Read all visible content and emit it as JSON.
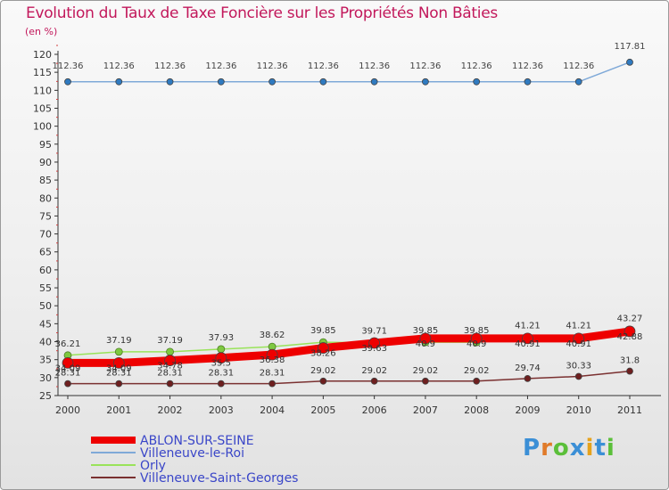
{
  "title": "Evolution du Taux de Taxe Foncière sur les Propriétés Non Bâties",
  "unit": "(en %)",
  "brand": "Proxiti",
  "chart_data": {
    "type": "line",
    "title": "Evolution du Taux de Taxe Foncière sur les Propriétés Non Bâties",
    "ylabel": "(en %)",
    "xlabel": "",
    "ylim": [
      25,
      120
    ],
    "ytick_step": 5,
    "grid": false,
    "legend_position": "bottom-left",
    "categories": [
      "2000",
      "2001",
      "2002",
      "2003",
      "2004",
      "2005",
      "2006",
      "2007",
      "2008",
      "2009",
      "2010",
      "2011"
    ],
    "series": [
      {
        "name": "ABLON-SUR-SEINE",
        "color": "#ee0000",
        "marker_color": "#ee0000",
        "values": [
          34.09,
          34.09,
          34.78,
          35.5,
          36.38,
          38.26,
          39.63,
          40.9,
          40.9,
          40.91,
          40.91,
          42.88
        ],
        "labels": [
          "34.09",
          "34.09",
          "34.78",
          "35.5",
          "36.38",
          "38.26",
          "39.63",
          "40.9",
          "40.9",
          "40.91",
          "40.91",
          "42.88"
        ]
      },
      {
        "name": "Villeneuve-le-Roi",
        "color": "#7fa9d8",
        "marker_color": "#2f7ac0",
        "values": [
          112.36,
          112.36,
          112.36,
          112.36,
          112.36,
          112.36,
          112.36,
          112.36,
          112.36,
          112.36,
          112.36,
          117.81
        ],
        "labels": [
          "112.36",
          "112.36",
          "112.36",
          "112.36",
          "112.36",
          "112.36",
          "112.36",
          "112.36",
          "112.36",
          "112.36",
          "112.36",
          "117.81"
        ]
      },
      {
        "name": "Orly",
        "color": "#99e35a",
        "marker_color": "#7ec840",
        "values": [
          36.21,
          37.19,
          37.19,
          37.93,
          38.62,
          39.85,
          39.71,
          39.85,
          39.85,
          41.21,
          41.21,
          43.27
        ],
        "labels": [
          "36.21",
          "37.19",
          "37.19",
          "37.93",
          "38.62",
          "39.85",
          "39.71",
          "39.85",
          "39.85",
          "41.21",
          "41.21",
          "43.27"
        ]
      },
      {
        "name": "Villeneuve-Saint-Georges",
        "color": "#7a3030",
        "marker_color": "#6e1f1f",
        "values": [
          28.31,
          28.31,
          28.31,
          28.31,
          28.31,
          29.02,
          29.02,
          29.02,
          29.02,
          29.74,
          30.33,
          31.8
        ],
        "labels": [
          "28.31",
          "28.31",
          "28.31",
          "28.31",
          "28.31",
          "29.02",
          "29.02",
          "29.02",
          "29.02",
          "29.74",
          "30.33",
          "31.8"
        ]
      }
    ]
  }
}
